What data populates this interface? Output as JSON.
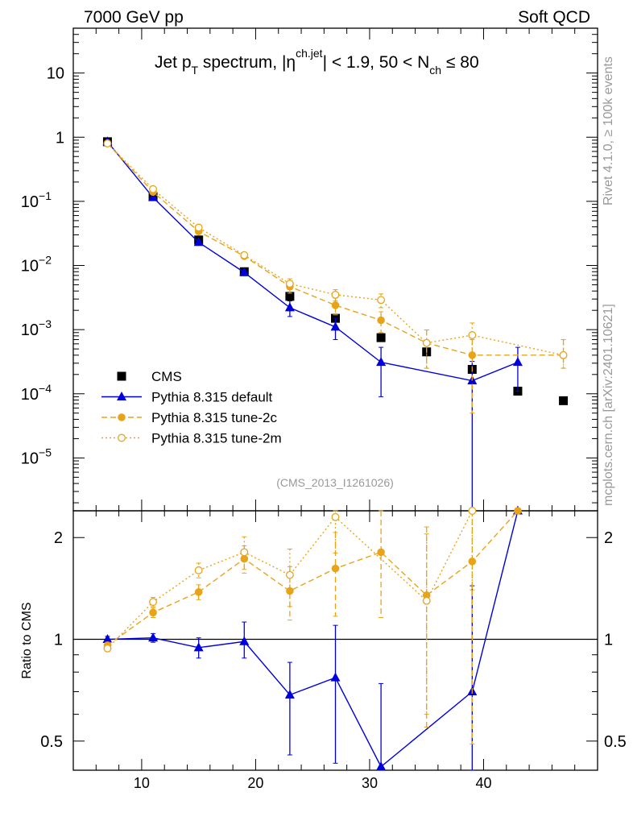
{
  "header": {
    "left": "7000 GeV pp",
    "right": "Soft QCD"
  },
  "title": {
    "main": "Jet p",
    "sub1": "T",
    "mid": " spectrum, |η",
    "sup": "ch.jet",
    "rest": "| < 1.9, 50 < N",
    "sub2": "ch",
    "end": " ≤ 80"
  },
  "side_labels": {
    "rivet": "Rivet 4.1.0, ≥ 100k events",
    "mcplots": "mcplots.cern.ch [arXiv:2401.10621]"
  },
  "analysis_id": "(CMS_2013_I1261026)",
  "ratio_ylabel": "Ratio to CMS",
  "chart_data": {
    "type": "scatter",
    "xlim": [
      4,
      50
    ],
    "top": {
      "yscale": "log",
      "ylim": [
        1.5e-06,
        50
      ],
      "ticks": [
        {
          "v": 10,
          "base": "10",
          "exp": ""
        },
        {
          "v": 1,
          "base": "1",
          "exp": ""
        },
        {
          "v": 0.1,
          "base": "10",
          "exp": "−1"
        },
        {
          "v": 0.01,
          "base": "10",
          "exp": "−2"
        },
        {
          "v": 0.001,
          "base": "10",
          "exp": "−3"
        },
        {
          "v": 0.0001,
          "base": "10",
          "exp": "−4"
        },
        {
          "v": 1e-05,
          "base": "10",
          "exp": "−5"
        }
      ]
    },
    "bottom": {
      "yscale": "log",
      "ylim": [
        0.41,
        2.4
      ],
      "ticks": [
        {
          "v": 2,
          "label": "2"
        },
        {
          "v": 1,
          "label": "1"
        },
        {
          "v": 0.5,
          "label": "0.5"
        }
      ]
    },
    "x_ticks": [
      10,
      20,
      30,
      40
    ],
    "legend": [
      "CMS",
      "Pythia 8.315 default",
      "Pythia 8.315 tune-2c",
      "Pythia 8.315 tune-2m"
    ],
    "series": [
      {
        "name": "CMS",
        "color": "#000000",
        "marker": "square",
        "line": "none",
        "x": [
          7,
          11,
          15,
          19,
          23,
          27,
          31,
          35,
          39,
          43,
          47
        ],
        "y": [
          0.85,
          0.12,
          0.025,
          0.008,
          0.0033,
          0.0015,
          0.00075,
          0.00045,
          0.00024,
          0.00011,
          7.8e-05
        ],
        "ratio": [],
        "ratio_err": []
      },
      {
        "name": "Pythia 8.315 default",
        "color": "#0000dd",
        "marker": "triangle",
        "line": "solid",
        "x": [
          7,
          11,
          15,
          19,
          23,
          27,
          31,
          39,
          43
        ],
        "y": [
          0.85,
          0.115,
          0.023,
          0.0078,
          0.0022,
          0.0011,
          0.00031,
          0.00016,
          0.00031
        ],
        "yerr_lo": [
          0,
          0.005,
          0.002,
          0.0005,
          0.0006,
          0.0004,
          0.00022,
          0.00016,
          0.0002
        ],
        "yerr_hi": [
          0,
          0.005,
          0.002,
          0.0005,
          0.0006,
          0.0004,
          0.00022,
          0.00016,
          0.00022
        ],
        "ratio_x": [
          7,
          11,
          15,
          19,
          23,
          27,
          31,
          39,
          43
        ],
        "ratio": [
          1.0,
          1.01,
          0.945,
          0.985,
          0.685,
          0.77,
          0.42,
          0.7,
          2.4
        ],
        "ratio_err_lo": [
          0.02,
          0.03,
          0.065,
          0.105,
          0.23,
          0.34,
          0.32,
          0.41,
          0
        ],
        "ratio_err_hi": [
          0.02,
          0.03,
          0.065,
          0.14,
          0.17,
          0.33,
          0.32,
          0.74,
          0
        ]
      },
      {
        "name": "Pythia 8.315 tune-2c",
        "color": "#e8a419",
        "marker": "circle",
        "line": "dashed",
        "x": [
          7,
          11,
          15,
          19,
          23,
          27,
          31,
          35,
          39,
          47
        ],
        "y": [
          0.8,
          0.14,
          0.034,
          0.014,
          0.0047,
          0.0024,
          0.0014,
          0.00062,
          0.0004,
          0.0004
        ],
        "yerr_lo": [
          0,
          0.005,
          0.002,
          0.001,
          0.001,
          0.0007,
          0.0005,
          0.00037,
          0.00035,
          0.00015
        ],
        "yerr_hi": [
          0,
          0.005,
          0.002,
          0.001,
          0.001,
          0.0007,
          0.0005,
          0.00037,
          0.0003,
          0.0003
        ],
        "ratio_x": [
          7,
          11,
          15,
          19,
          23,
          27,
          31,
          35,
          39,
          43
        ],
        "ratio": [
          0.96,
          1.2,
          1.38,
          1.73,
          1.39,
          1.62,
          1.81,
          1.35,
          1.7,
          2.4
        ],
        "ratio_err_lo": [
          0.02,
          0.04,
          0.07,
          0.16,
          0.25,
          0.45,
          0.65,
          0.8,
          1.21,
          0
        ],
        "ratio_err_hi": [
          0.02,
          0.04,
          0.07,
          0.16,
          0.25,
          0.45,
          0.65,
          0.8,
          0.7,
          0
        ]
      },
      {
        "name": "Pythia 8.315 tune-2m",
        "color": "#e8a419",
        "marker": "open-circle",
        "line": "dotted",
        "x": [
          7,
          11,
          15,
          19,
          23,
          27,
          31,
          35,
          39,
          47
        ],
        "y": [
          0.8,
          0.155,
          0.039,
          0.0145,
          0.0052,
          0.0035,
          0.0029,
          0.00062,
          0.00082,
          0.0004
        ],
        "yerr_lo": [
          0,
          0.005,
          0.002,
          0.001,
          0.001,
          0.0007,
          0.0007,
          0.00037,
          0.00045,
          0.00015
        ],
        "yerr_hi": [
          0,
          0.005,
          0.002,
          0.001,
          0.001,
          0.0007,
          0.0007,
          0.00037,
          0.00045,
          0.0003
        ],
        "ratio_x": [
          7,
          11,
          15,
          19,
          23,
          27,
          35,
          39
        ],
        "ratio": [
          0.94,
          1.29,
          1.6,
          1.81,
          1.55,
          2.3,
          1.3,
          2.4
        ],
        "ratio_err_lo": [
          0.02,
          0.04,
          0.08,
          0.2,
          0.3,
          0.5,
          0.7,
          1.0
        ],
        "ratio_err_hi": [
          0.02,
          0.04,
          0.08,
          0.2,
          0.3,
          0.5,
          0.75,
          0.0
        ]
      }
    ]
  }
}
